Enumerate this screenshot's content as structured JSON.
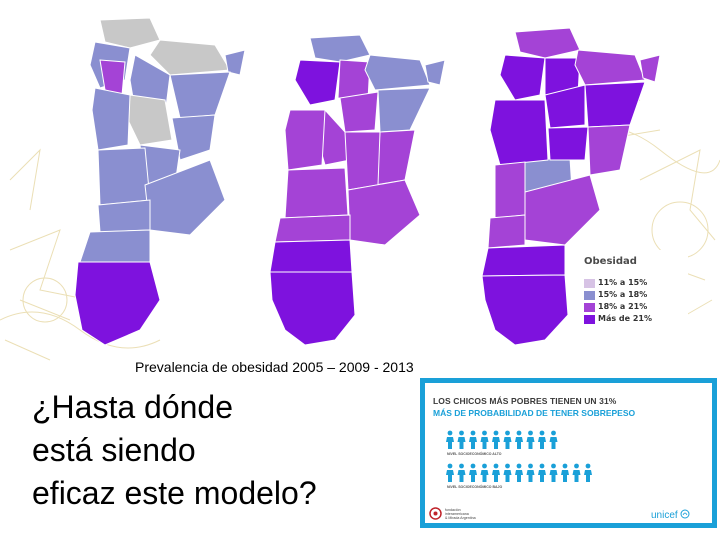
{
  "maps": {
    "years": [
      "2005",
      "2009",
      "2013"
    ]
  },
  "legend": {
    "title": "Obesidad",
    "items": [
      {
        "label": "11% a 15%",
        "color": "#d7c3e5"
      },
      {
        "label": "15% a 18%",
        "color": "#8a8fd0"
      },
      {
        "label": "18% a 21%",
        "color": "#a443d6"
      },
      {
        "label": "Más de 21%",
        "color": "#7e12de"
      }
    ]
  },
  "colors": {
    "no_data": "#c8c8c8",
    "border": "#ffffff",
    "poster_accent": "#1aa0d8",
    "person_high": "#1aa0d8",
    "person_low": "#1aa0d8"
  },
  "caption": "Prevalencia de obesidad 2005 – 2009 - 2013",
  "question": {
    "line1": "¿Hasta dónde",
    "line2": "está siendo",
    "line3": "eficaz este modelo?"
  },
  "poster": {
    "headline": "LOS CHICOS MÁS POBRES TIENEN UN 31%",
    "subheadline": "MÁS DE PROBABILIDAD DE TENER SOBREPESO",
    "high_level_label": "NIVEL SOCIOECONÓMICO ALTO",
    "low_level_label": "NIVEL SOCIOECONÓMICO BAJO",
    "org_name": "fundación\ninteramericana\n& Mirada Argentina",
    "unicef": "unicef"
  }
}
